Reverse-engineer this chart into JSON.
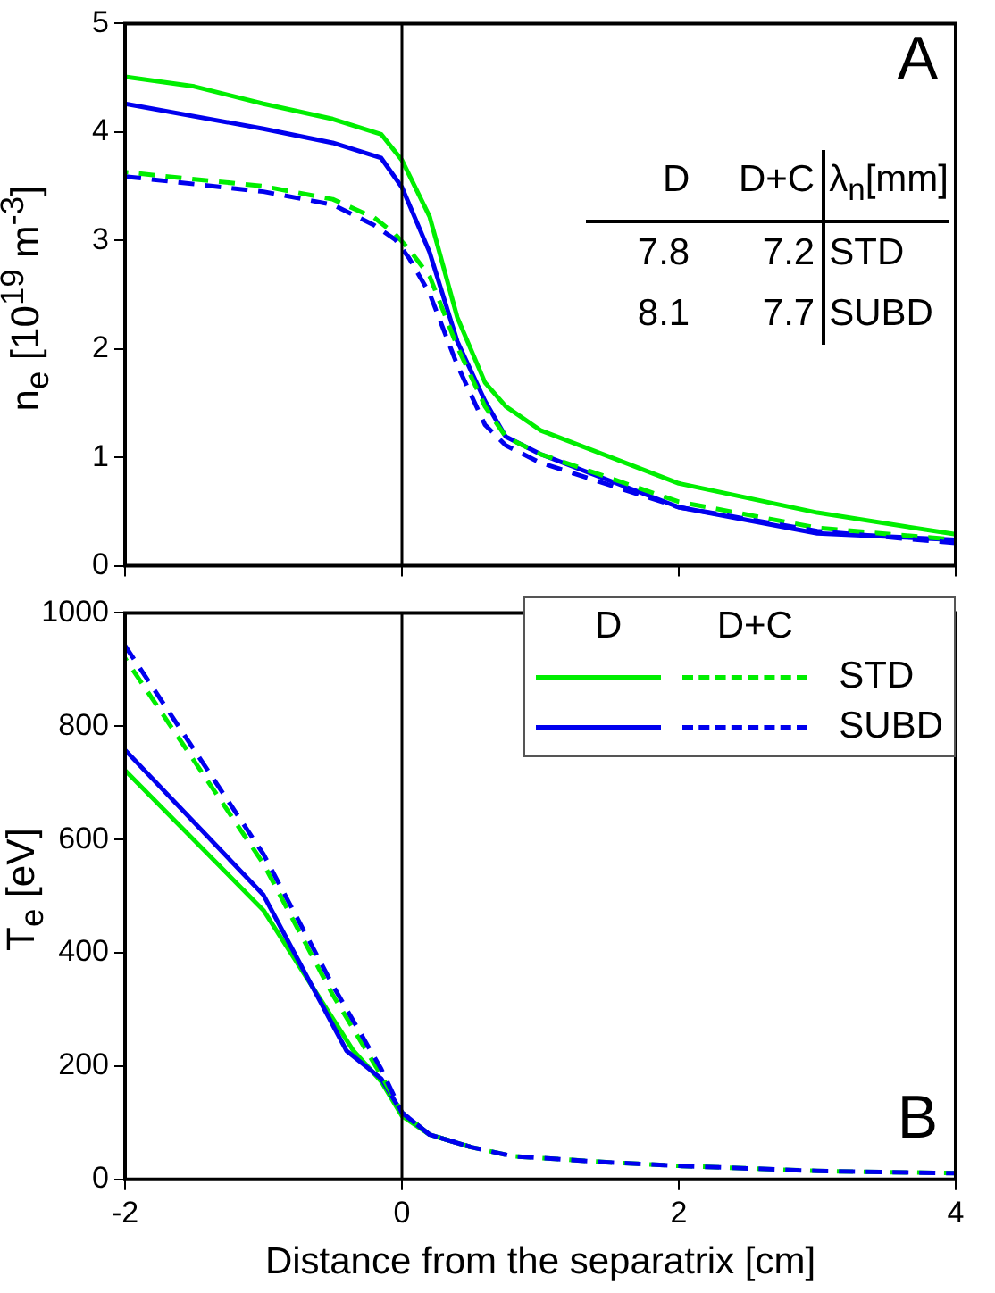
{
  "chart_data": [
    {
      "type": "line",
      "ylabel": "n$_{e}$ [10$^{19}$ m$^{-3}$]",
      "xlim": [
        -2,
        4
      ],
      "xticks": [
        -2,
        0,
        2,
        4
      ],
      "ylim": [
        0,
        5
      ],
      "yticks": [
        0,
        1,
        2,
        3,
        4,
        5
      ],
      "tick_labels": "y",
      "grid": false,
      "ref_lines": [
        {
          "axis": "x",
          "value": 0,
          "color": "#000000"
        }
      ],
      "annotations": [
        "A",
        "D",
        "D+C",
        "λ$_{n}$[mm]",
        "7.8",
        "7.2",
        "STD",
        "8.1",
        "7.7",
        "SUBD"
      ],
      "series": [
        {
          "color": "#00ee00",
          "line_style": "solid",
          "x": [
            -2,
            -1.5,
            -1,
            -0.5,
            -0.15,
            0,
            0.2,
            0.4,
            0.6,
            0.75,
            1,
            2,
            3,
            4
          ],
          "values": [
            4.51,
            4.42,
            4.26,
            4.12,
            3.98,
            3.74,
            3.22,
            2.29,
            1.69,
            1.47,
            1.25,
            0.76,
            0.49,
            0.29
          ]
        },
        {
          "color": "#0000ee",
          "line_style": "solid",
          "x": [
            -2,
            -1,
            -0.5,
            -0.15,
            0,
            0.2,
            0.4,
            0.6,
            0.75,
            1,
            2,
            3,
            4
          ],
          "values": [
            4.26,
            4.03,
            3.9,
            3.76,
            3.49,
            2.89,
            2.07,
            1.52,
            1.19,
            1.03,
            0.54,
            0.3,
            0.24
          ]
        },
        {
          "color": "#00ee00",
          "line_style": "dashed",
          "x": [
            -2,
            -1,
            -0.5,
            -0.2,
            -0.05,
            0.05,
            0.2,
            0.4,
            0.6,
            0.75,
            1,
            2,
            3,
            4
          ],
          "values": [
            3.63,
            3.5,
            3.38,
            3.21,
            3.06,
            2.92,
            2.67,
            2.02,
            1.47,
            1.19,
            1.03,
            0.59,
            0.35,
            0.24
          ]
        },
        {
          "color": "#0000ee",
          "line_style": "dashed",
          "x": [
            -2,
            -1,
            -0.5,
            -0.2,
            -0.05,
            0.05,
            0.2,
            0.4,
            0.6,
            0.75,
            1,
            2,
            3,
            4
          ],
          "values": [
            3.59,
            3.45,
            3.33,
            3.14,
            3.01,
            2.84,
            2.51,
            1.85,
            1.3,
            1.11,
            0.95,
            0.54,
            0.32,
            0.21
          ]
        }
      ]
    },
    {
      "type": "line",
      "xlabel": "Distance from the separatrix [cm]",
      "ylabel": "T$_{e}$ [eV]",
      "xlim": [
        -2,
        4
      ],
      "xticks": [
        -2,
        0,
        2,
        4
      ],
      "ylim": [
        0,
        1000
      ],
      "yticks": [
        0,
        200,
        400,
        600,
        800,
        1000
      ],
      "grid": false,
      "legend": "top right",
      "ref_lines": [
        {
          "axis": "x",
          "value": 0,
          "color": "#000000"
        }
      ],
      "annotations": [
        "B",
        "D",
        "D+C"
      ],
      "series": [
        {
          "name": "STD",
          "color": "#00ee00",
          "line_style": "solid",
          "x": [
            -2,
            -1,
            -0.35,
            -0.15,
            0,
            0.2,
            0.5
          ],
          "values": [
            722,
            475,
            227,
            173,
            112,
            79,
            57
          ]
        },
        {
          "name": "SUBD",
          "color": "#0000ee",
          "line_style": "solid",
          "x": [
            -2,
            -1,
            -0.4,
            -0.15,
            0,
            0.2,
            0.5
          ],
          "values": [
            758,
            502,
            227,
            178,
            118,
            79,
            57
          ]
        },
        {
          "color": "#00ee00",
          "line_style": "dashed",
          "x": [
            -2,
            -1,
            -0.5,
            -0.15,
            0,
            0.2,
            0.5,
            0.8,
            1.5,
            2,
            3,
            4
          ],
          "values": [
            920,
            557,
            326,
            184,
            118,
            79,
            57,
            41,
            30,
            24,
            15,
            11
          ]
        },
        {
          "color": "#0000ee",
          "line_style": "dashed",
          "x": [
            -2,
            -1,
            -0.5,
            -0.15,
            0,
            0.2,
            0.5,
            0.8,
            1.5,
            2,
            3,
            4
          ],
          "values": [
            942,
            574,
            343,
            195,
            118,
            79,
            57,
            41,
            30,
            24,
            15,
            11
          ]
        }
      ]
    }
  ]
}
